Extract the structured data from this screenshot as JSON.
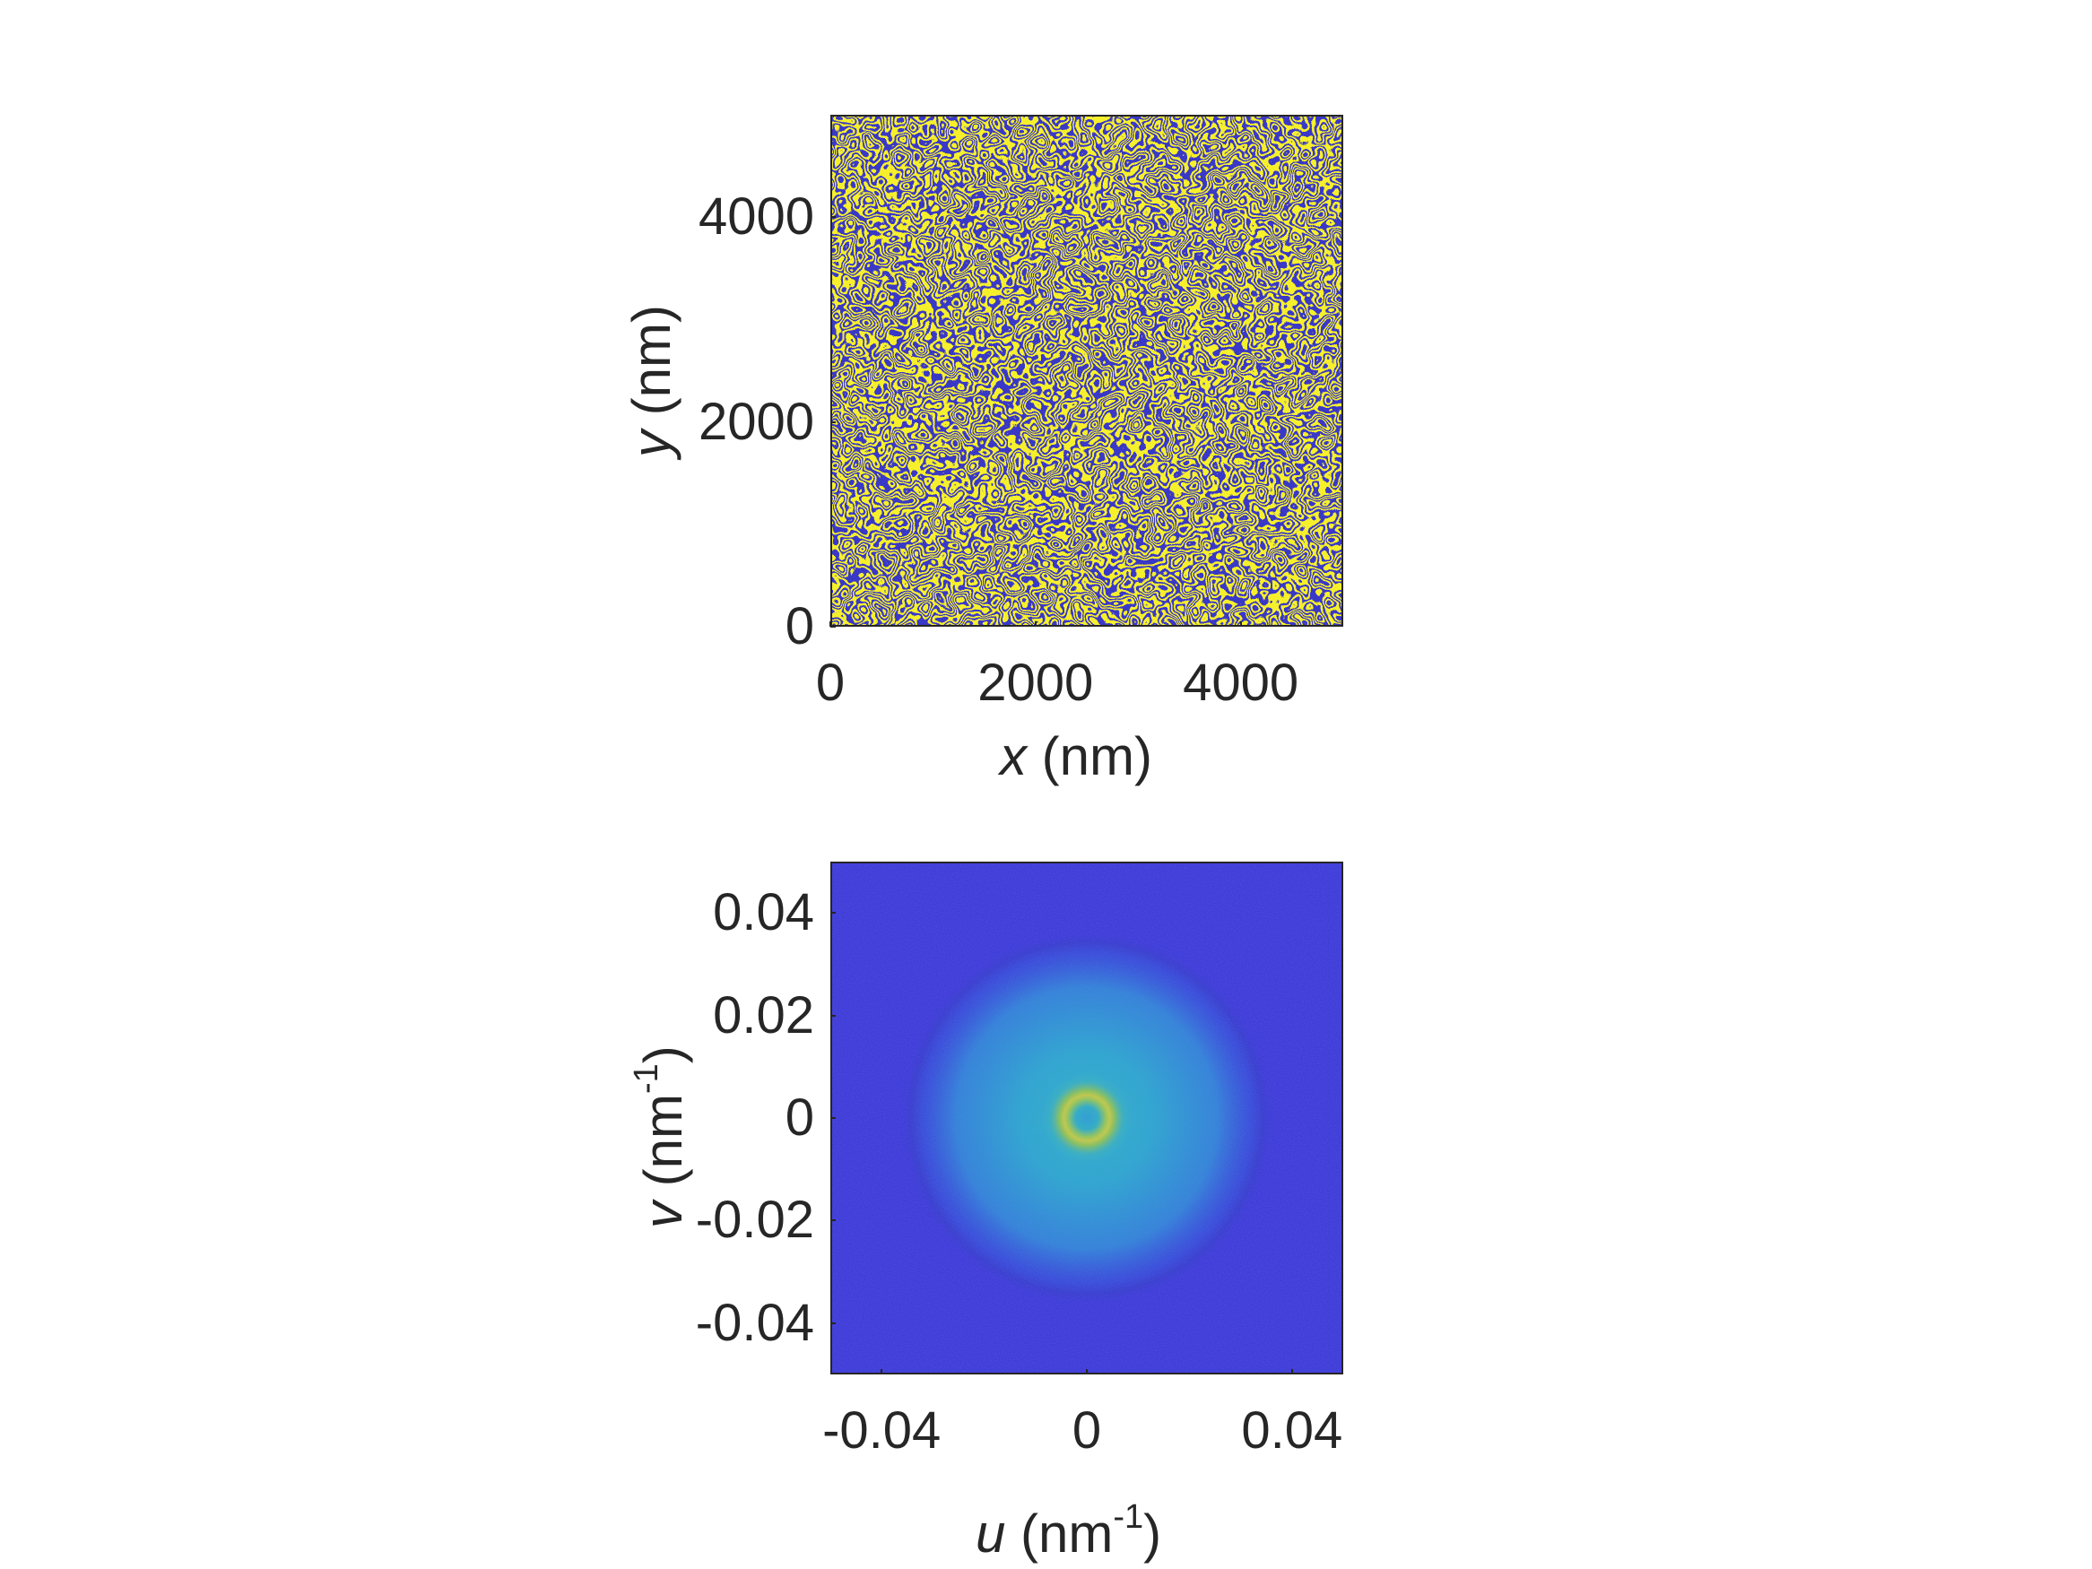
{
  "chart_data": [
    {
      "type": "heatmap",
      "description_role": "real-space labyrinth pattern",
      "xlabel_symbol": "x",
      "xlabel_unit": " (nm)",
      "ylabel_symbol": "y",
      "ylabel_unit": " (nm)",
      "xlim": [
        0,
        5000
      ],
      "ylim": [
        0,
        5000
      ],
      "xticks": [
        0,
        2000,
        4000
      ],
      "yticks": [
        0,
        2000,
        4000
      ],
      "xtick_labels": [
        "0",
        "2000",
        "4000"
      ],
      "ytick_labels": [
        "0",
        "2000",
        "4000"
      ],
      "colors": [
        "#3b38c8",
        "#f6f12c",
        "#4aa8c8"
      ],
      "grid": false
    },
    {
      "type": "heatmap",
      "description_role": "2D Fourier transform magnitude",
      "xlabel_symbol": "u",
      "xlabel_unit_pre": " (nm",
      "xlabel_unit_sup": "-1",
      "xlabel_unit_post": ")",
      "ylabel_symbol": "v",
      "ylabel_unit_pre": " (nm",
      "ylabel_unit_sup": "-1",
      "ylabel_unit_post": ")",
      "xlim": [
        -0.05,
        0.05
      ],
      "ylim": [
        -0.05,
        0.05
      ],
      "xticks": [
        -0.04,
        0,
        0.04
      ],
      "yticks": [
        -0.04,
        -0.02,
        0,
        0.02,
        0.04
      ],
      "xtick_labels": [
        "-0.04",
        "0",
        "0.04"
      ],
      "ytick_labels": [
        "-0.04",
        "-0.02",
        "0",
        "0.02",
        "0.04"
      ],
      "ring_radius": 0.0045,
      "halo_radius": 0.034,
      "colors": [
        "#3b35d6",
        "#2f9ad4",
        "#2ab8b8",
        "#c9cf3a"
      ],
      "grid": false
    }
  ]
}
